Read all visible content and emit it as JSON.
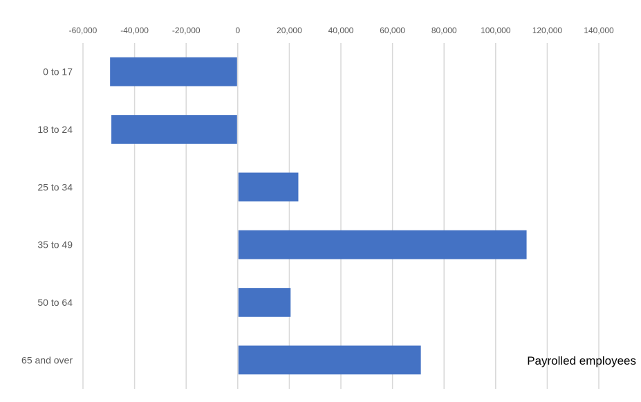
{
  "chart_data": {
    "type": "bar",
    "orientation": "horizontal",
    "categories": [
      "0 to 17",
      "18 to 24",
      "25 to 34",
      "35 to 49",
      "50 to 64",
      "65 and over"
    ],
    "series": [
      {
        "name": "Payrolled employees",
        "values": [
          -49500,
          -49000,
          23500,
          112000,
          20500,
          71000
        ]
      }
    ],
    "x_ticks": [
      "-60,000",
      "-40,000",
      "-20,000",
      "0",
      "20,000",
      "40,000",
      "60,000",
      "80,000",
      "100,000",
      "120,000",
      "140,000"
    ],
    "xlim": [
      -60000,
      140000
    ],
    "x_axis_position": "top",
    "grid": true,
    "legend_position": "bottom-right",
    "colors": {
      "bar": "#4472C4",
      "grid": "#D9D9D9",
      "axis_text": "#595959"
    }
  }
}
